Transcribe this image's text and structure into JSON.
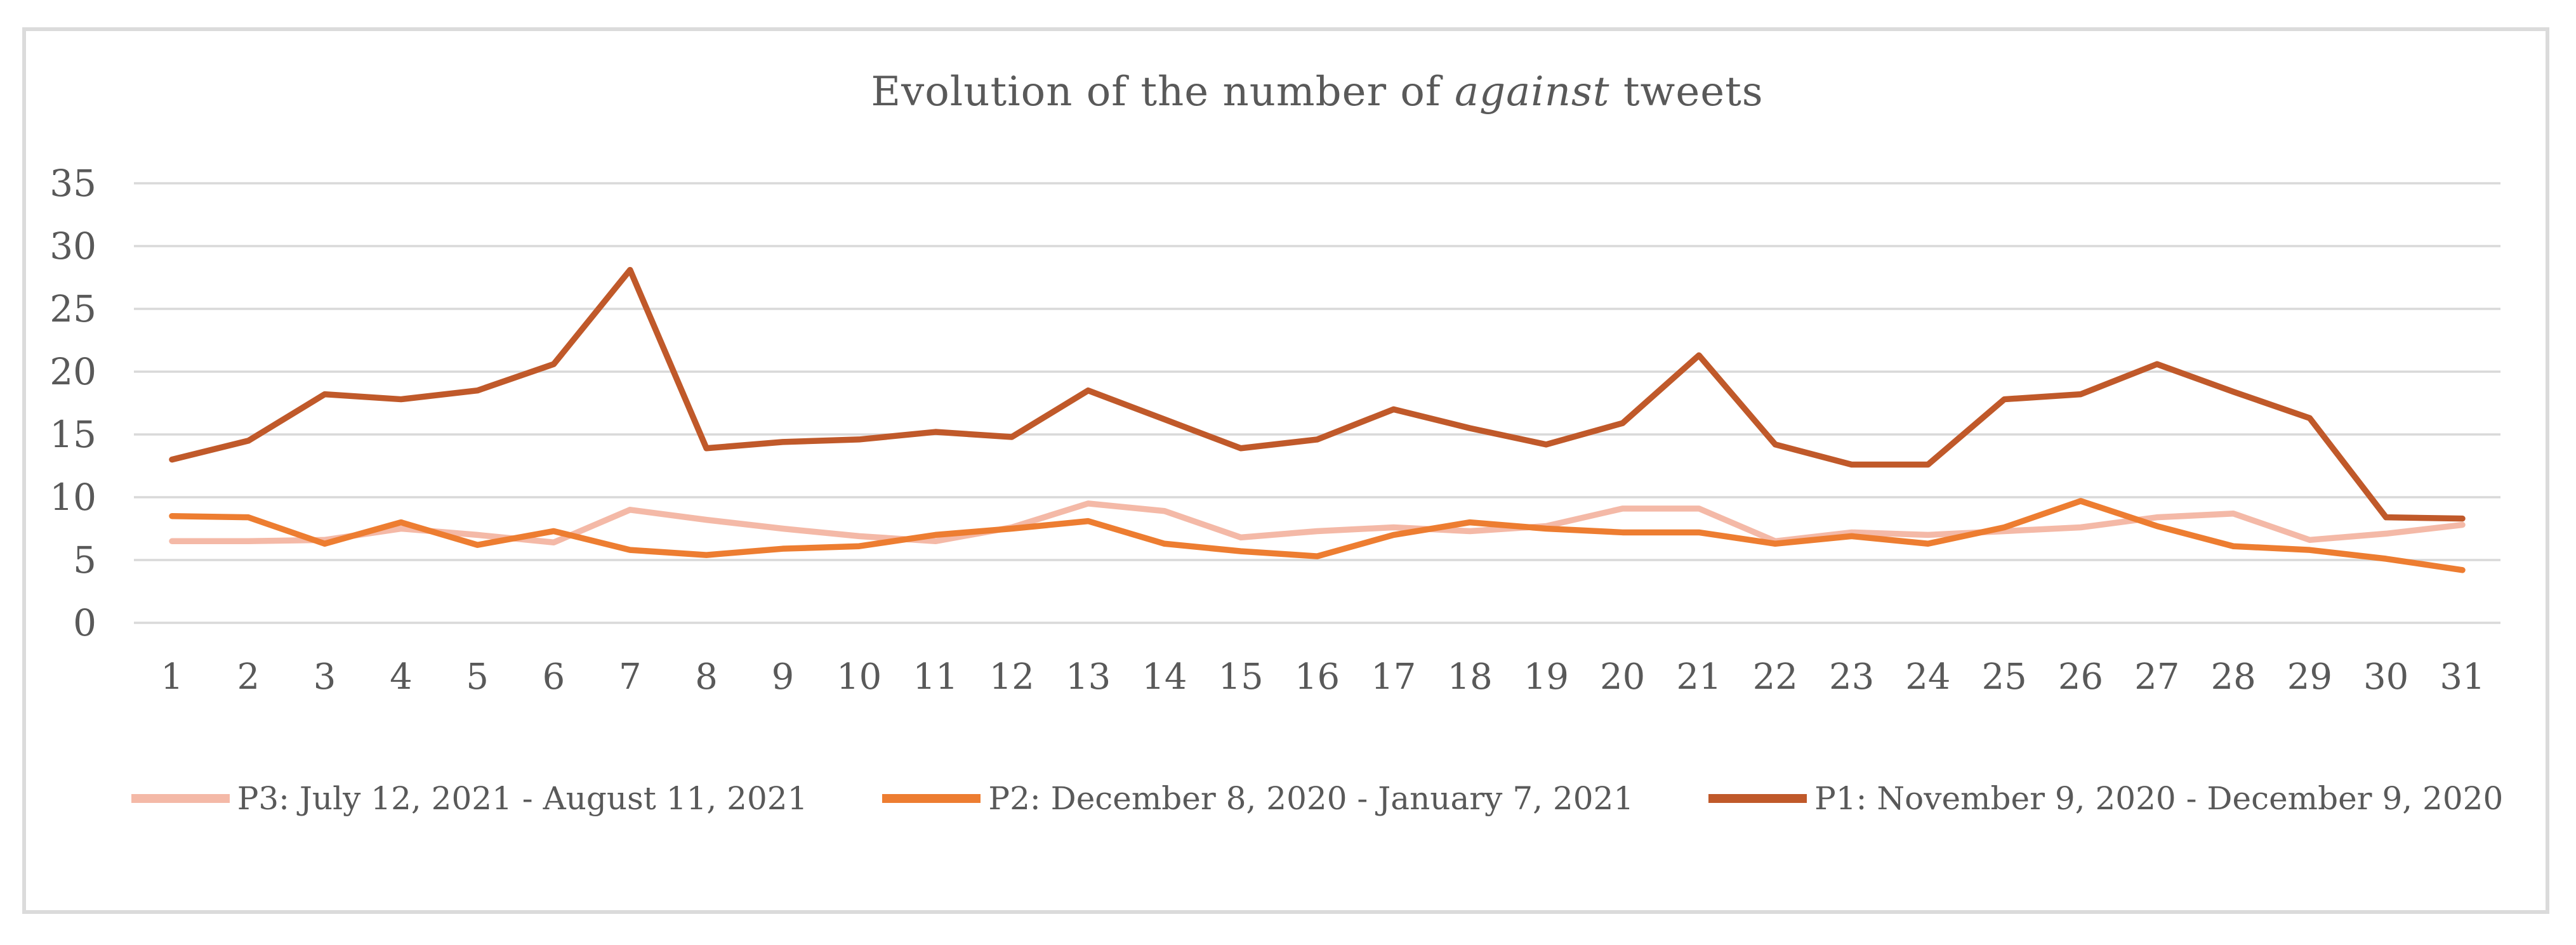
{
  "chart_data": {
    "type": "line",
    "title": {
      "prefix": "Evolution of the number of ",
      "italic": "against",
      "suffix": " tweets",
      "full_text": "Evolution of the number of against tweets"
    },
    "xlabel": "",
    "ylabel": "",
    "categories": [
      1,
      2,
      3,
      4,
      5,
      6,
      7,
      8,
      9,
      10,
      11,
      12,
      13,
      14,
      15,
      16,
      17,
      18,
      19,
      20,
      21,
      22,
      23,
      24,
      25,
      26,
      27,
      28,
      29,
      30,
      31
    ],
    "y_ticks": [
      35,
      30,
      25,
      20,
      15,
      10,
      5,
      0
    ],
    "ylim": [
      0,
      35
    ],
    "grid": true,
    "legend_position": "bottom",
    "series": [
      {
        "name": "P3: July 12, 2021 - August 11, 2021",
        "color": "#F4B9A7",
        "values": [
          6.5,
          6.5,
          6.6,
          7.5,
          7,
          6.4,
          9,
          8.2,
          7.5,
          6.9,
          6.5,
          7.6,
          9.5,
          8.9,
          6.8,
          7.3,
          7.6,
          7.3,
          7.7,
          9.1,
          9.1,
          6.5,
          7.2,
          7,
          7.3,
          7.6,
          8.4,
          8.7,
          6.6,
          7.1,
          7.8
        ]
      },
      {
        "name": "P2: December 8, 2020 - January 7, 2021",
        "color": "#ED7D31",
        "values": [
          8.5,
          8.4,
          6.3,
          8,
          6.2,
          7.3,
          5.8,
          5.4,
          5.9,
          6.1,
          7,
          7.5,
          8.1,
          6.3,
          5.7,
          5.3,
          7,
          8,
          7.5,
          7.2,
          7.2,
          6.3,
          6.9,
          6.3,
          7.6,
          9.7,
          7.7,
          6.1,
          5.8,
          5.1,
          4.2
        ]
      },
      {
        "name": "P1: November 9, 2020 - December 9, 2020",
        "color": "#C0592A",
        "values": [
          13,
          14.5,
          18.2,
          17.8,
          18.5,
          20.6,
          28.1,
          13.9,
          14.4,
          14.6,
          15.2,
          14.8,
          18.5,
          16.2,
          13.9,
          14.6,
          17,
          15.5,
          14.2,
          15.9,
          21.3,
          14.2,
          12.6,
          12.6,
          17.8,
          18.2,
          20.6,
          18.4,
          16.3,
          8.4,
          8.3
        ]
      }
    ]
  },
  "colors": {
    "gridline": "#D9D9D9",
    "axis_text": "#595959",
    "title_text": "#595959",
    "frame_border": "#DBDBDB",
    "background": "#FFFFFF"
  }
}
